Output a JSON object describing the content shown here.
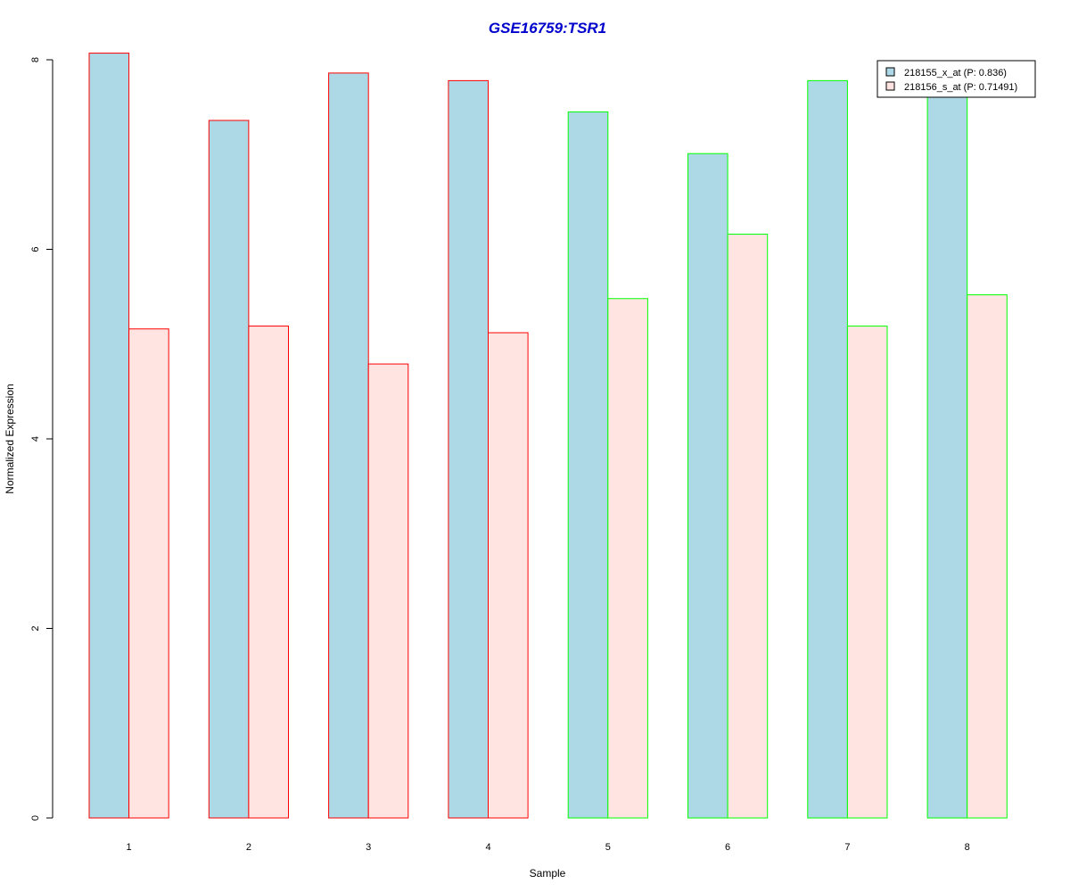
{
  "chart_data": {
    "type": "bar",
    "title": "GSE16759:TSR1",
    "xlabel": "Sample",
    "ylabel": "Normalized Expression",
    "categories": [
      "1",
      "2",
      "3",
      "4",
      "5",
      "6",
      "7",
      "8"
    ],
    "ylim": [
      0,
      8
    ],
    "yticks": [
      0,
      2,
      4,
      6,
      8
    ],
    "series": [
      {
        "name": "218155_x_at (P: 0.836)",
        "fill": "#add8e6",
        "values": [
          8.07,
          7.36,
          7.86,
          7.78,
          7.45,
          7.01,
          7.78,
          7.66
        ]
      },
      {
        "name": "218156_s_at (P: 0.71491)",
        "fill": "#ffe4e1",
        "values": [
          5.16,
          5.19,
          4.79,
          5.12,
          5.48,
          6.16,
          5.19,
          5.52
        ]
      }
    ],
    "group_border_colors": [
      "#ff0000",
      "#ff0000",
      "#ff0000",
      "#ff0000",
      "#00ff00",
      "#00ff00",
      "#00ff00",
      "#00ff00"
    ],
    "title_color": "#0000cd",
    "legend_position": "top-right",
    "grid": false
  }
}
